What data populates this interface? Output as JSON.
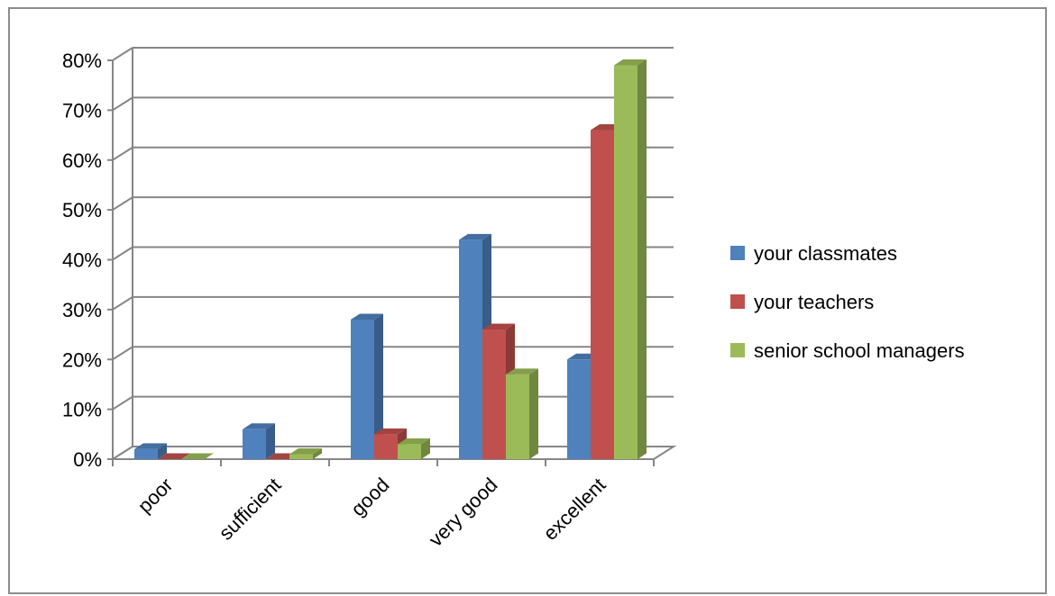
{
  "chart_data": {
    "type": "bar",
    "categories": [
      "poor",
      "sufficient",
      "good",
      "very good",
      "excellent"
    ],
    "series": [
      {
        "name": "your classmates",
        "values": [
          2,
          6,
          28,
          44,
          20
        ],
        "color": "#4f81bd"
      },
      {
        "name": "your teachers",
        "values": [
          0,
          0,
          5,
          26,
          66
        ],
        "color": "#c0504d"
      },
      {
        "name": "senior school managers",
        "values": [
          0,
          1,
          3,
          17,
          79
        ],
        "color": "#9bbb59"
      }
    ],
    "yticks": [
      "0%",
      "10%",
      "20%",
      "30%",
      "40%",
      "50%",
      "60%",
      "70%",
      "80%"
    ],
    "ylim": [
      0,
      80
    ],
    "grid": true,
    "legend_position": "right"
  }
}
